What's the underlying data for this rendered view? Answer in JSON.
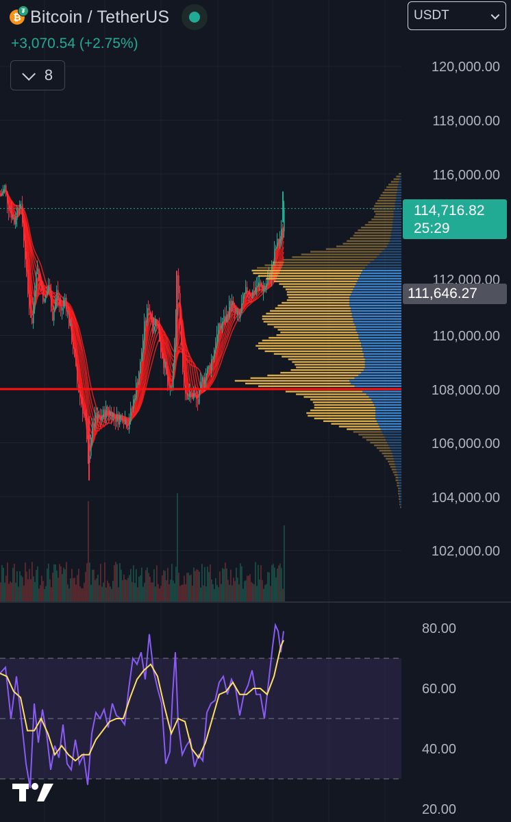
{
  "header": {
    "symbol_title": "Bitcoin / TetherUS",
    "change_text": "+3,070.54 (+2.75%)",
    "indicator_count": "8",
    "currency_select": "USDT",
    "base_icon": "bitcoin-icon",
    "quote_icon": "tether-icon"
  },
  "price_scale": {
    "labels": [
      "120,000.00",
      "118,000.00",
      "116,000.00",
      "112,000.00",
      "110,000.00",
      "108,000.00",
      "106,000.00",
      "104,000.00",
      "102,000.00"
    ],
    "last_price": "114,716.82",
    "countdown": "25:29",
    "reference_price": "111,646.27"
  },
  "oscillator_scale": {
    "labels": [
      "80.00",
      "60.00",
      "40.00",
      "20.00"
    ]
  },
  "colors": {
    "background": "#131722",
    "up": "#22ab94",
    "down": "#f23645",
    "ribbon": "#ff1e1e",
    "horizontal_line": "#ff1111",
    "vp_up": "#e8b64a",
    "vp_down": "#3d8bd9",
    "rsi": "#8a5cf6",
    "rsi_ma": "#ffe066",
    "rsi_band": "#2a2545"
  },
  "chart_data": {
    "type": "candlestick",
    "pair": "BTC/USDT",
    "last_price": 114716.82,
    "horizontal_line": 108000,
    "y_range": [
      101000,
      121500
    ],
    "price_path": [
      [
        0,
        115200
      ],
      [
        6,
        115500
      ],
      [
        12,
        114800
      ],
      [
        20,
        114200
      ],
      [
        28,
        115100
      ],
      [
        33,
        114000
      ],
      [
        40,
        111500
      ],
      [
        46,
        110400
      ],
      [
        52,
        112600
      ],
      [
        58,
        112000
      ],
      [
        64,
        111200
      ],
      [
        70,
        111900
      ],
      [
        76,
        110700
      ],
      [
        82,
        111600
      ],
      [
        88,
        110900
      ],
      [
        94,
        111400
      ],
      [
        100,
        110500
      ],
      [
        106,
        109600
      ],
      [
        112,
        108200
      ],
      [
        118,
        107500
      ],
      [
        124,
        106800
      ],
      [
        128,
        105100
      ],
      [
        132,
        106300
      ],
      [
        138,
        106900
      ],
      [
        146,
        106900
      ],
      [
        154,
        107200
      ],
      [
        162,
        107100
      ],
      [
        170,
        106900
      ],
      [
        178,
        107000
      ],
      [
        186,
        106700
      ],
      [
        192,
        107300
      ],
      [
        198,
        108100
      ],
      [
        204,
        108900
      ],
      [
        210,
        110300
      ],
      [
        216,
        111100
      ],
      [
        222,
        110400
      ],
      [
        228,
        110600
      ],
      [
        234,
        109500
      ],
      [
        240,
        108800
      ],
      [
        246,
        107800
      ],
      [
        250,
        108100
      ],
      [
        254,
        109400
      ],
      [
        258,
        112200
      ],
      [
        262,
        110600
      ],
      [
        266,
        108700
      ],
      [
        270,
        107900
      ],
      [
        276,
        107700
      ],
      [
        282,
        107800
      ],
      [
        288,
        107500
      ],
      [
        294,
        108300
      ],
      [
        300,
        108600
      ],
      [
        306,
        108900
      ],
      [
        312,
        109500
      ],
      [
        318,
        110200
      ],
      [
        324,
        110500
      ],
      [
        330,
        110700
      ],
      [
        336,
        111300
      ],
      [
        342,
        110800
      ],
      [
        348,
        110600
      ],
      [
        354,
        111300
      ],
      [
        360,
        111700
      ],
      [
        366,
        111500
      ],
      [
        372,
        111800
      ],
      [
        378,
        111900
      ],
      [
        384,
        111700
      ],
      [
        390,
        112000
      ],
      [
        396,
        112500
      ],
      [
        402,
        113300
      ],
      [
        408,
        113600
      ],
      [
        412,
        114000
      ],
      [
        414,
        114700
      ]
    ],
    "rsi_range": [
      15,
      85
    ],
    "rsi_bands": [
      30,
      50,
      70
    ],
    "rsi": [
      [
        0,
        65
      ],
      [
        8,
        67
      ],
      [
        16,
        50
      ],
      [
        24,
        64
      ],
      [
        32,
        48
      ],
      [
        38,
        35
      ],
      [
        44,
        27
      ],
      [
        50,
        55
      ],
      [
        56,
        42
      ],
      [
        62,
        53
      ],
      [
        68,
        45
      ],
      [
        74,
        33
      ],
      [
        80,
        41
      ],
      [
        86,
        37
      ],
      [
        92,
        48
      ],
      [
        98,
        35
      ],
      [
        104,
        33
      ],
      [
        110,
        43
      ],
      [
        116,
        35
      ],
      [
        122,
        38
      ],
      [
        128,
        28
      ],
      [
        134,
        45
      ],
      [
        140,
        52
      ],
      [
        146,
        50
      ],
      [
        152,
        53
      ],
      [
        158,
        47
      ],
      [
        164,
        55
      ],
      [
        170,
        51
      ],
      [
        176,
        50
      ],
      [
        182,
        48
      ],
      [
        188,
        60
      ],
      [
        194,
        70
      ],
      [
        200,
        68
      ],
      [
        206,
        72
      ],
      [
        212,
        63
      ],
      [
        218,
        78
      ],
      [
        224,
        66
      ],
      [
        230,
        60
      ],
      [
        236,
        55
      ],
      [
        242,
        35
      ],
      [
        248,
        39
      ],
      [
        252,
        58
      ],
      [
        256,
        72
      ],
      [
        260,
        49
      ],
      [
        266,
        38
      ],
      [
        272,
        41
      ],
      [
        278,
        43
      ],
      [
        284,
        34
      ],
      [
        290,
        38
      ],
      [
        296,
        36
      ],
      [
        302,
        52
      ],
      [
        308,
        55
      ],
      [
        314,
        56
      ],
      [
        320,
        62
      ],
      [
        326,
        64
      ],
      [
        332,
        58
      ],
      [
        338,
        63
      ],
      [
        344,
        60
      ],
      [
        350,
        51
      ],
      [
        356,
        58
      ],
      [
        362,
        61
      ],
      [
        368,
        66
      ],
      [
        374,
        58
      ],
      [
        380,
        58
      ],
      [
        386,
        50
      ],
      [
        392,
        62
      ],
      [
        398,
        74
      ],
      [
        402,
        81
      ],
      [
        406,
        79
      ],
      [
        410,
        72
      ],
      [
        414,
        79
      ]
    ],
    "rsi_ma": [
      [
        0,
        65
      ],
      [
        10,
        64
      ],
      [
        20,
        59
      ],
      [
        30,
        57
      ],
      [
        40,
        46
      ],
      [
        50,
        46
      ],
      [
        60,
        50
      ],
      [
        70,
        45
      ],
      [
        80,
        38
      ],
      [
        90,
        41
      ],
      [
        100,
        38
      ],
      [
        110,
        36
      ],
      [
        120,
        38
      ],
      [
        130,
        38
      ],
      [
        140,
        43
      ],
      [
        150,
        46
      ],
      [
        160,
        49
      ],
      [
        170,
        50
      ],
      [
        180,
        50
      ],
      [
        190,
        57
      ],
      [
        200,
        63
      ],
      [
        210,
        66
      ],
      [
        220,
        68
      ],
      [
        230,
        64
      ],
      [
        240,
        54
      ],
      [
        250,
        45
      ],
      [
        260,
        50
      ],
      [
        270,
        49
      ],
      [
        280,
        40
      ],
      [
        290,
        37
      ],
      [
        300,
        42
      ],
      [
        310,
        50
      ],
      [
        320,
        58
      ],
      [
        330,
        59
      ],
      [
        340,
        62
      ],
      [
        350,
        58
      ],
      [
        360,
        58
      ],
      [
        370,
        60
      ],
      [
        380,
        60
      ],
      [
        390,
        58
      ],
      [
        400,
        64
      ],
      [
        410,
        74
      ],
      [
        414,
        76
      ]
    ],
    "volume_profile": {
      "bins": [
        116000,
        115900,
        115800,
        115700,
        115600,
        115500,
        115400,
        115300,
        115200,
        115100,
        115000,
        114900,
        114800,
        114700,
        114600,
        114500,
        114400,
        114300,
        114200,
        114100,
        114000,
        113900,
        113800,
        113700,
        113600,
        113500,
        113400,
        113300,
        113200,
        113100,
        113000,
        112900,
        112800,
        112700,
        112600,
        112500,
        112400,
        112300,
        112200,
        112100,
        112000,
        111900,
        111800,
        111700,
        111600,
        111500,
        111400,
        111300,
        111200,
        111100,
        111000,
        110900,
        110800,
        110700,
        110600,
        110500,
        110400,
        110300,
        110200,
        110100,
        110000,
        109900,
        109800,
        109700,
        109600,
        109500,
        109400,
        109300,
        109200,
        109100,
        109000,
        108900,
        108800,
        108700,
        108600,
        108500,
        108400,
        108300,
        108200,
        108100,
        108000,
        107900,
        107800,
        107700,
        107600,
        107500,
        107400,
        107300,
        107200,
        107100,
        107000,
        106900,
        106800,
        106700,
        106600,
        106500,
        106400,
        106300,
        106200,
        106100,
        106000,
        105900,
        105800,
        105700,
        105600,
        105500,
        105400,
        105300,
        105200,
        105100,
        105000,
        104900,
        104800,
        104700,
        104600,
        104500,
        104400,
        104300,
        104200,
        104100,
        104000,
        103900,
        103800,
        103700,
        103600
      ],
      "up_volume": [
        3,
        6,
        9,
        12,
        15,
        17,
        20,
        22,
        24,
        26,
        28,
        30,
        32,
        34,
        30,
        28,
        30,
        33,
        38,
        42,
        48,
        52,
        56,
        58,
        62,
        66,
        70,
        78,
        90,
        110,
        120,
        130,
        140,
        150,
        158,
        166,
        170,
        166,
        156,
        142,
        128,
        118,
        110,
        104,
        100,
        98,
        94,
        96,
        104,
        110,
        116,
        124,
        132,
        138,
        140,
        138,
        134,
        126,
        120,
        118,
        126,
        138,
        150,
        158,
        162,
        160,
        150,
        138,
        126,
        118,
        112,
        108,
        106,
        112,
        124,
        140,
        160,
        176,
        162,
        148,
        132,
        118,
        108,
        100,
        94,
        92,
        92,
        94,
        100,
        106,
        104,
        94,
        82,
        72,
        62,
        52,
        44,
        38,
        34,
        30,
        26,
        22,
        20,
        18,
        16,
        14,
        12,
        10,
        9,
        8,
        7,
        6,
        5,
        4,
        4,
        3,
        3,
        2,
        2,
        2,
        2,
        2,
        1,
        1,
        1
      ],
      "down_volume": [
        1,
        2,
        3,
        4,
        5,
        6,
        6,
        7,
        8,
        8,
        9,
        10,
        10,
        11,
        12,
        12,
        12,
        13,
        13,
        14,
        14,
        15,
        16,
        16,
        17,
        18,
        20,
        22,
        26,
        30,
        34,
        38,
        42,
        48,
        52,
        56,
        60,
        62,
        64,
        66,
        68,
        70,
        72,
        74,
        76,
        78,
        80,
        80,
        80,
        80,
        78,
        78,
        76,
        76,
        74,
        74,
        72,
        70,
        70,
        68,
        66,
        66,
        64,
        62,
        62,
        60,
        60,
        58,
        58,
        56,
        56,
        56,
        56,
        58,
        62,
        66,
        72,
        80,
        78,
        72,
        66,
        60,
        54,
        50,
        46,
        44,
        42,
        40,
        40,
        40,
        40,
        40,
        38,
        36,
        34,
        32,
        30,
        28,
        26,
        24,
        22,
        20,
        18,
        16,
        14,
        13,
        12,
        11,
        10,
        9,
        8,
        7,
        6,
        5,
        5,
        4,
        4,
        3,
        3,
        3,
        2,
        2,
        2,
        2,
        1
      ]
    }
  }
}
